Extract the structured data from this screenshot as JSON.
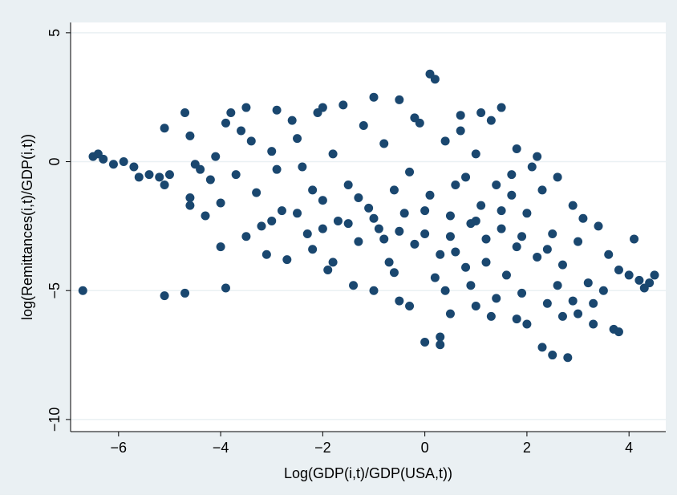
{
  "chart_data": {
    "type": "scatter",
    "x_label": "Log(GDP(i,t)/GDP(USA,t))",
    "y_label": "log(Remittances(i,t)/GDP(i,t))",
    "color": "#1a476f",
    "grid": true,
    "xlim": [
      -6.94,
      4.72
    ],
    "ylim": [
      -10.47,
      5.4
    ],
    "xticks": [
      {
        "value": -6,
        "label": "−6"
      },
      {
        "value": -4,
        "label": "−4"
      },
      {
        "value": -2,
        "label": "−2"
      },
      0,
      2,
      4
    ],
    "yticks": [
      {
        "value": -10,
        "label": "−10"
      },
      {
        "value": -5,
        "label": "−5"
      },
      0,
      5
    ],
    "x": [
      -6.7,
      -5.1,
      -4.7,
      -3.9,
      -6.5,
      -6.4,
      -6.3,
      -6.1,
      -5.9,
      -5.7,
      -5.6,
      -5.4,
      -5.2,
      -5.1,
      -5.0,
      -5.1,
      -4.7,
      -4.6,
      -4.5,
      -4.4,
      -4.6,
      -4.6,
      -4.3,
      -4.2,
      -4.1,
      -4.0,
      -4.0,
      -3.9,
      -3.8,
      -3.7,
      -3.6,
      -3.5,
      -3.4,
      -3.3,
      -3.2,
      -3.1,
      -3.0,
      -2.9,
      -2.9,
      -2.8,
      -2.7,
      -2.6,
      -2.5,
      -2.4,
      -2.3,
      -2.2,
      -2.1,
      -2.0,
      -2.0,
      -1.9,
      -1.8,
      -1.7,
      -1.6,
      -1.5,
      -1.4,
      -1.3,
      -1.2,
      -1.1,
      -1.0,
      -1.0,
      -0.9,
      -0.8,
      -0.7,
      -0.6,
      -0.5,
      -0.5,
      -0.4,
      -0.3,
      -0.2,
      -0.1,
      0.0,
      0.0,
      0.1,
      0.2,
      0.1,
      0.2,
      0.3,
      0.3,
      0.4,
      0.5,
      0.5,
      0.6,
      0.7,
      0.8,
      0.8,
      0.9,
      1.0,
      1.0,
      1.1,
      1.2,
      1.3,
      1.3,
      1.4,
      1.5,
      1.5,
      1.6,
      1.7,
      1.8,
      1.8,
      1.9,
      2.0,
      2.0,
      2.1,
      2.2,
      2.3,
      2.3,
      2.4,
      2.5,
      2.5,
      2.6,
      2.7,
      2.8,
      2.9,
      3.0,
      3.0,
      3.1,
      3.2,
      3.3,
      3.4,
      3.5,
      3.6,
      3.7,
      3.8,
      3.8,
      4.0,
      4.1,
      4.2,
      4.3,
      4.5,
      4.4,
      -1.5,
      -1.0,
      -0.5,
      0.0,
      0.5,
      1.0,
      1.5,
      -2.0,
      -0.8,
      0.3,
      1.2,
      0.6,
      1.7,
      -0.2,
      0.7,
      1.1,
      2.2,
      1.9,
      2.4,
      -1.3,
      -2.5,
      -3.0,
      -3.5,
      -2.2,
      -0.6,
      0.9,
      1.4,
      2.6,
      2.9,
      -1.8,
      -0.3,
      0.4,
      1.8,
      2.7,
      3.3
    ],
    "values": [
      -5.0,
      -5.2,
      -5.1,
      -4.9,
      0.2,
      0.3,
      0.1,
      -0.1,
      0.0,
      -0.2,
      -0.6,
      -0.5,
      -0.6,
      -0.9,
      -0.5,
      1.3,
      1.9,
      1.0,
      -0.1,
      -0.3,
      -1.4,
      -1.7,
      -2.1,
      -0.7,
      0.2,
      -1.6,
      -3.3,
      1.5,
      1.9,
      -0.5,
      1.2,
      2.1,
      0.8,
      -1.2,
      -2.5,
      -3.6,
      0.4,
      -0.3,
      2.0,
      -1.9,
      -3.8,
      1.6,
      0.9,
      -0.2,
      -2.8,
      -3.4,
      1.9,
      2.1,
      -1.5,
      -4.2,
      0.3,
      -2.3,
      2.2,
      -0.9,
      -4.8,
      -3.1,
      1.4,
      -1.8,
      2.5,
      -5.0,
      -2.6,
      0.7,
      -3.9,
      -1.1,
      2.4,
      -5.4,
      -2.0,
      -0.4,
      -3.2,
      1.5,
      -2.8,
      -7.0,
      3.4,
      3.2,
      -1.3,
      -4.5,
      -6.8,
      -7.1,
      0.8,
      -2.1,
      -5.9,
      -3.5,
      1.2,
      -0.6,
      -4.1,
      -2.4,
      -5.6,
      0.3,
      -1.7,
      -3.0,
      1.6,
      -6.0,
      -0.9,
      -2.6,
      2.1,
      -4.4,
      -1.3,
      0.5,
      -3.3,
      -5.1,
      -2.0,
      -6.3,
      -0.2,
      -3.7,
      -1.1,
      -7.2,
      -5.5,
      -2.8,
      -7.5,
      -0.6,
      -4.0,
      -7.6,
      -1.7,
      -5.9,
      -3.1,
      -2.2,
      -4.7,
      -6.3,
      -2.5,
      -5.0,
      -3.6,
      -6.5,
      -4.2,
      -6.6,
      -4.4,
      -3.0,
      -4.6,
      -4.9,
      -4.4,
      -4.7,
      -2.4,
      -2.2,
      -2.7,
      -1.9,
      -2.9,
      -2.3,
      -1.9,
      -2.6,
      -3.0,
      -3.6,
      -3.9,
      -0.9,
      -0.5,
      1.7,
      1.8,
      1.9,
      0.2,
      -2.9,
      -3.4,
      -1.4,
      -2.0,
      -2.3,
      -2.9,
      -1.1,
      -4.3,
      -4.8,
      -5.3,
      -4.8,
      -5.4,
      -3.9,
      -5.6,
      -5.0,
      -6.1,
      -6.0,
      -5.5
    ]
  }
}
